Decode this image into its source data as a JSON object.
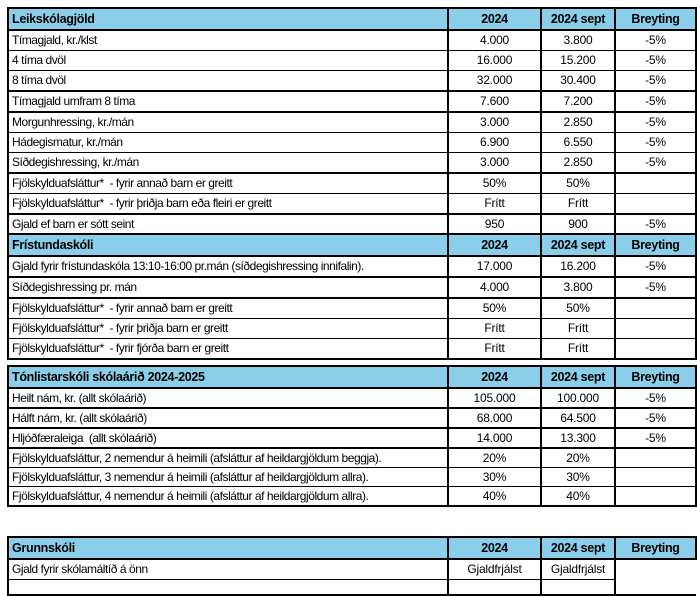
{
  "theme": {
    "header_bg": "#8BCEE9",
    "border_color": "#000000",
    "text_color": "#000000",
    "page_bg": "#FFFFFF"
  },
  "columns": [
    "2024",
    "2024 sept",
    "Breyting"
  ],
  "tables": [
    {
      "title": "Leikskólagjöld",
      "rows": [
        [
          "Tímagjald, kr./klst",
          "4.000",
          "3.800",
          "-5%"
        ],
        [
          "4 tíma dvöl",
          "16.000",
          "15.200",
          "-5%"
        ],
        [
          "8 tíma dvöl",
          "32.000",
          "30.400",
          "-5%"
        ],
        [
          "Tímagjald umfram 8 tíma",
          "7.600",
          "7.200",
          "-5%"
        ],
        [
          "Morgunhressing, kr./mán",
          "3.000",
          "2.850",
          "-5%"
        ],
        [
          "Hádegismatur, kr./mán",
          "6.900",
          "6.550",
          "-5%"
        ],
        [
          "Síðdegishressing, kr./mán",
          "3.000",
          "2.850",
          "-5%"
        ],
        [
          "Fjölskylduafsláttur*  - fyrir annað barn er greitt",
          "50%",
          "50%",
          ""
        ],
        [
          "Fjölskylduafsláttur*  - fyrir þriðja barn eða fleiri er greitt",
          "Frítt",
          "Frítt",
          ""
        ],
        [
          "Gjald ef barn er sótt seint",
          "950",
          "900",
          "-5%"
        ]
      ]
    },
    {
      "title": "Frístundaskóli",
      "rows": [
        [
          "Gjald fyrir frístundaskóla 13:10-16:00 pr.mán (síðdegishressing innifalin).",
          "17.000",
          "16.200",
          "-5%"
        ],
        [
          "Síðdegishressing pr. mán",
          "4.000",
          "3.800",
          "-5%"
        ],
        [
          "Fjölskylduafsláttur*  - fyrir annað barn er greitt",
          "50%",
          "50%",
          ""
        ],
        [
          "Fjölskylduafsláttur*  - fyrir þriðja barn er greitt",
          "Frítt",
          "Frítt",
          ""
        ],
        [
          "Fjölskylduafsláttur*  - fyrir fjórða barn er greitt",
          "Frítt",
          "Frítt",
          ""
        ]
      ]
    },
    {
      "title": "Tónlistarskóli skólaárið 2024-2025",
      "rows": [
        [
          "Heilt nám, kr. (allt skólaárið)",
          "105.000",
          "100.000",
          "-5%"
        ],
        [
          "Hálft nám, kr. (allt skólaárið)",
          "68.000",
          "64.500",
          "-5%"
        ],
        [
          "Hljóðfæraleiga  (allt skólaárið)",
          "14.000",
          "13.300",
          "-5%"
        ],
        [
          "Fjölskylduafsláttur, 2 nemendur á heimili (afsláttur af heildargjöldum beggja).",
          "20%",
          "20%",
          ""
        ],
        [
          "Fjölskylduafsláttur, 3 nemendur á heimili (afsláttur af heildargjöldum allra).",
          "30%",
          "30%",
          ""
        ],
        [
          "Fjölskylduafsláttur, 4 nemendur á heimili (afsláttur af heildargjöldum allra).",
          "40%",
          "40%",
          ""
        ]
      ]
    },
    {
      "title": "Grunnskóli",
      "rows": [
        [
          "Gjald fyrir skólamáltíð á önn",
          "Gjaldfrjálst",
          "Gjaldfrjálst",
          ""
        ]
      ]
    }
  ]
}
